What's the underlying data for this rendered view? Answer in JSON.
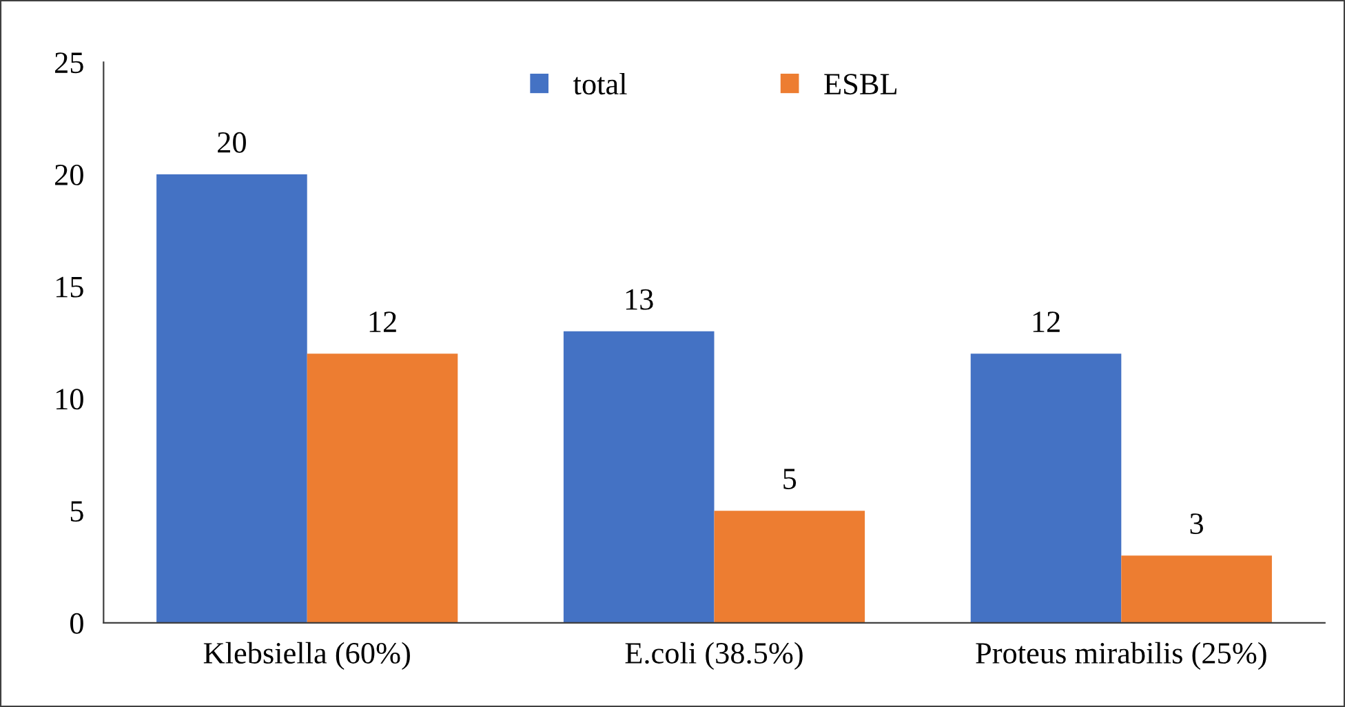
{
  "chart_data": {
    "type": "bar",
    "categories": [
      "Klebsiella (60%)",
      "E.coli (38.5%)",
      "Proteus mirabilis (25%)"
    ],
    "series": [
      {
        "name": "total",
        "color": "#4472c4",
        "values": [
          20,
          13,
          12
        ]
      },
      {
        "name": "ESBL",
        "color": "#ed7d31",
        "values": [
          12,
          5,
          3
        ]
      }
    ],
    "ylim": [
      0,
      25
    ],
    "yticks": [
      0,
      5,
      10,
      15,
      20,
      25
    ],
    "data_labels": true,
    "legend": "top",
    "grid": false
  }
}
